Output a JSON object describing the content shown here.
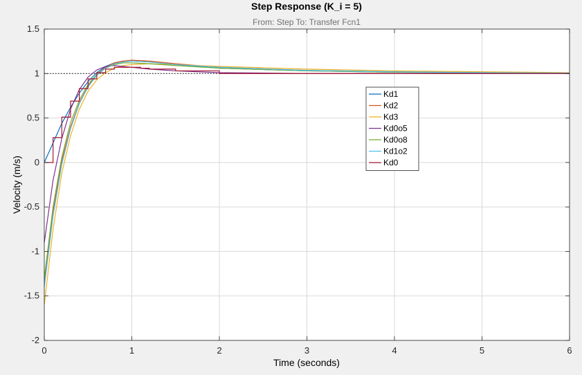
{
  "chart_data": {
    "type": "line",
    "title": "Step Response (K_i = 5)",
    "subtitle": "From: Step  To: Transfer Fcn1",
    "xlabel": "Time (seconds)",
    "ylabel": "Velocity (m/s)",
    "xlim": [
      0,
      6
    ],
    "ylim": [
      -2,
      1.5
    ],
    "xticks": [
      0,
      1,
      2,
      3,
      4,
      5,
      6
    ],
    "yticks": [
      -2,
      -1.5,
      -1,
      -0.5,
      0,
      0.5,
      1,
      1.5
    ],
    "xtick_labels": [
      "0",
      "1",
      "2",
      "3",
      "4",
      "5",
      "6"
    ],
    "ytick_labels": [
      "-2",
      "-1.5",
      "-1",
      "-0.5",
      "0",
      "0.5",
      "1",
      "1.5"
    ],
    "grid": true,
    "reference_line": 1,
    "legend_position": "inside-upper-center",
    "series": [
      {
        "name": "Kd1",
        "color": "#0072BD",
        "x": [
          0,
          0.1,
          0.2,
          0.3,
          0.4,
          0.5,
          0.6,
          0.7,
          0.8,
          0.9,
          1.0,
          1.2,
          1.5,
          2.0,
          3.0,
          4.0,
          5.0,
          6.0
        ],
        "y": [
          0,
          0.22,
          0.44,
          0.62,
          0.78,
          0.91,
          1.01,
          1.08,
          1.12,
          1.14,
          1.14,
          1.13,
          1.1,
          1.06,
          1.03,
          1.015,
          1.01,
          1.005
        ]
      },
      {
        "name": "Kd2",
        "color": "#D95319",
        "x": [
          0,
          0.1,
          0.2,
          0.3,
          0.4,
          0.5,
          0.6,
          0.7,
          0.8,
          0.9,
          1.0,
          1.2,
          1.5,
          2.0,
          3.0,
          4.0,
          5.0,
          6.0
        ],
        "y": [
          -1.35,
          -0.55,
          0.02,
          0.4,
          0.67,
          0.86,
          0.99,
          1.07,
          1.12,
          1.14,
          1.15,
          1.14,
          1.11,
          1.07,
          1.035,
          1.02,
          1.01,
          1.005
        ]
      },
      {
        "name": "Kd3",
        "color": "#EDB120",
        "x": [
          0,
          0.1,
          0.2,
          0.3,
          0.4,
          0.5,
          0.6,
          0.7,
          0.8,
          0.9,
          1.0,
          1.2,
          1.5,
          2.0,
          3.0,
          4.0,
          5.0,
          6.0
        ],
        "y": [
          -1.6,
          -0.75,
          -0.12,
          0.3,
          0.6,
          0.8,
          0.93,
          1.01,
          1.06,
          1.09,
          1.1,
          1.11,
          1.1,
          1.08,
          1.05,
          1.03,
          1.02,
          1.01
        ]
      },
      {
        "name": "Kd0o5",
        "color": "#7E2F8E",
        "x": [
          0,
          0.1,
          0.2,
          0.3,
          0.4,
          0.5,
          0.6,
          0.7,
          0.8,
          0.9,
          1.0,
          1.2,
          1.5,
          2.0,
          3.0,
          4.0,
          5.0,
          6.0
        ],
        "y": [
          -0.9,
          -0.2,
          0.27,
          0.6,
          0.82,
          0.96,
          1.04,
          1.08,
          1.09,
          1.08,
          1.07,
          1.05,
          1.03,
          1.01,
          1.0,
          1.0,
          1.0,
          1.0
        ]
      },
      {
        "name": "Kd0o8",
        "color": "#77AC30",
        "x": [
          0,
          0.1,
          0.2,
          0.3,
          0.4,
          0.5,
          0.6,
          0.7,
          0.8,
          0.9,
          1.0,
          1.2,
          1.5,
          2.0,
          3.0,
          4.0,
          5.0,
          6.0
        ],
        "y": [
          -1.3,
          -0.5,
          0.06,
          0.45,
          0.7,
          0.88,
          0.99,
          1.06,
          1.1,
          1.12,
          1.12,
          1.11,
          1.09,
          1.06,
          1.03,
          1.015,
          1.01,
          1.005
        ]
      },
      {
        "name": "Kd1o2",
        "color": "#4DBEEE",
        "x": [
          0,
          0.1,
          0.2,
          0.3,
          0.4,
          0.5,
          0.6,
          0.7,
          0.8,
          0.9,
          1.0,
          1.2,
          1.5,
          2.0,
          3.0,
          4.0,
          5.0,
          6.0
        ],
        "y": [
          -1.4,
          -0.6,
          -0.02,
          0.38,
          0.66,
          0.85,
          0.98,
          1.06,
          1.11,
          1.13,
          1.14,
          1.13,
          1.1,
          1.07,
          1.035,
          1.02,
          1.01,
          1.005
        ]
      },
      {
        "name": "Kd0",
        "color": "#A2142F",
        "step": true,
        "x": [
          0,
          0.1,
          0.2,
          0.3,
          0.4,
          0.5,
          0.6,
          0.7,
          0.8,
          0.9,
          1.0,
          1.1,
          1.2,
          1.5,
          2.0,
          3.0,
          4.0,
          5.0,
          6.0
        ],
        "y": [
          0,
          0.28,
          0.51,
          0.69,
          0.83,
          0.94,
          1.01,
          1.05,
          1.07,
          1.07,
          1.07,
          1.06,
          1.05,
          1.03,
          1.0,
          1.0,
          1.0,
          1.0,
          1.0
        ]
      }
    ]
  }
}
